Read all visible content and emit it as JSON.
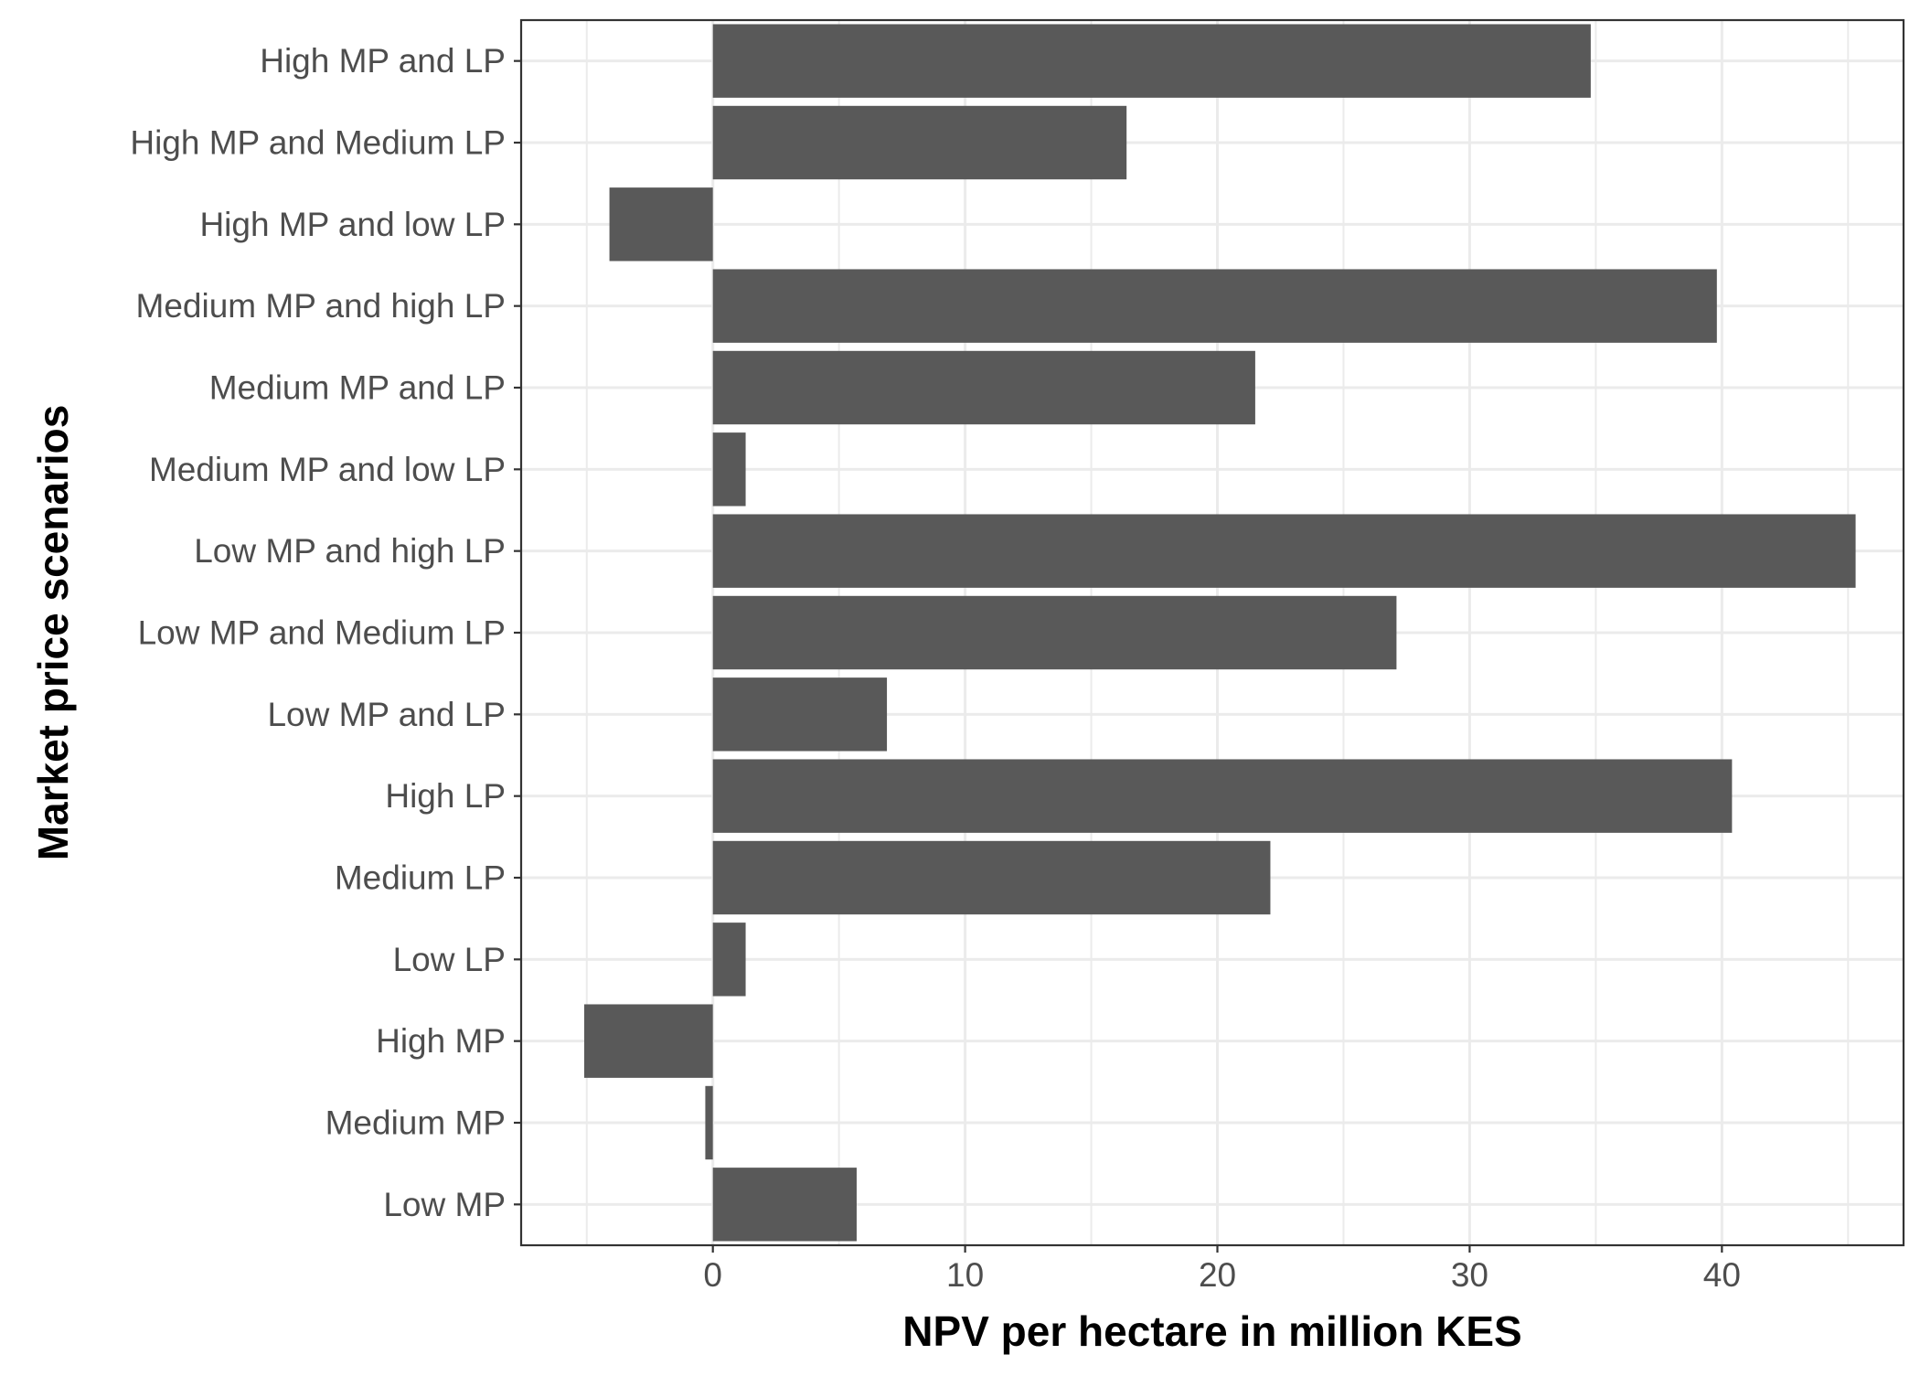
{
  "chart_data": {
    "type": "bar",
    "orientation": "horizontal",
    "xlabel": "NPV per hectare in million KES",
    "ylabel": "Market price scenarios",
    "categories": [
      "High MP and LP",
      "High MP and Medium LP",
      "High MP and low LP",
      "Medium MP and high LP",
      "Medium MP and LP",
      "Medium MP and low LP",
      "Low MP and high LP",
      "Low MP and Medium LP",
      "Low MP and LP",
      "High LP",
      "Medium LP",
      "Low LP",
      "High MP",
      "Medium MP",
      "Low MP"
    ],
    "values": [
      34.8,
      16.4,
      -4.1,
      39.8,
      21.5,
      1.3,
      45.3,
      27.1,
      6.9,
      40.4,
      22.1,
      1.3,
      -5.1,
      -0.3,
      5.7
    ],
    "xlim": [
      -7.6,
      47.2
    ],
    "xticks": [
      0,
      10,
      20,
      30,
      40
    ],
    "xticks_minor": [
      -5,
      5,
      15,
      25,
      35,
      45
    ],
    "grid": true,
    "legend": "none",
    "colors": {
      "bar": "#595959",
      "grid": "#ebebeb",
      "panel_border": "#333333",
      "tick_text": "#4d4d4d",
      "title_text": "#000000",
      "background": "#ffffff"
    }
  }
}
